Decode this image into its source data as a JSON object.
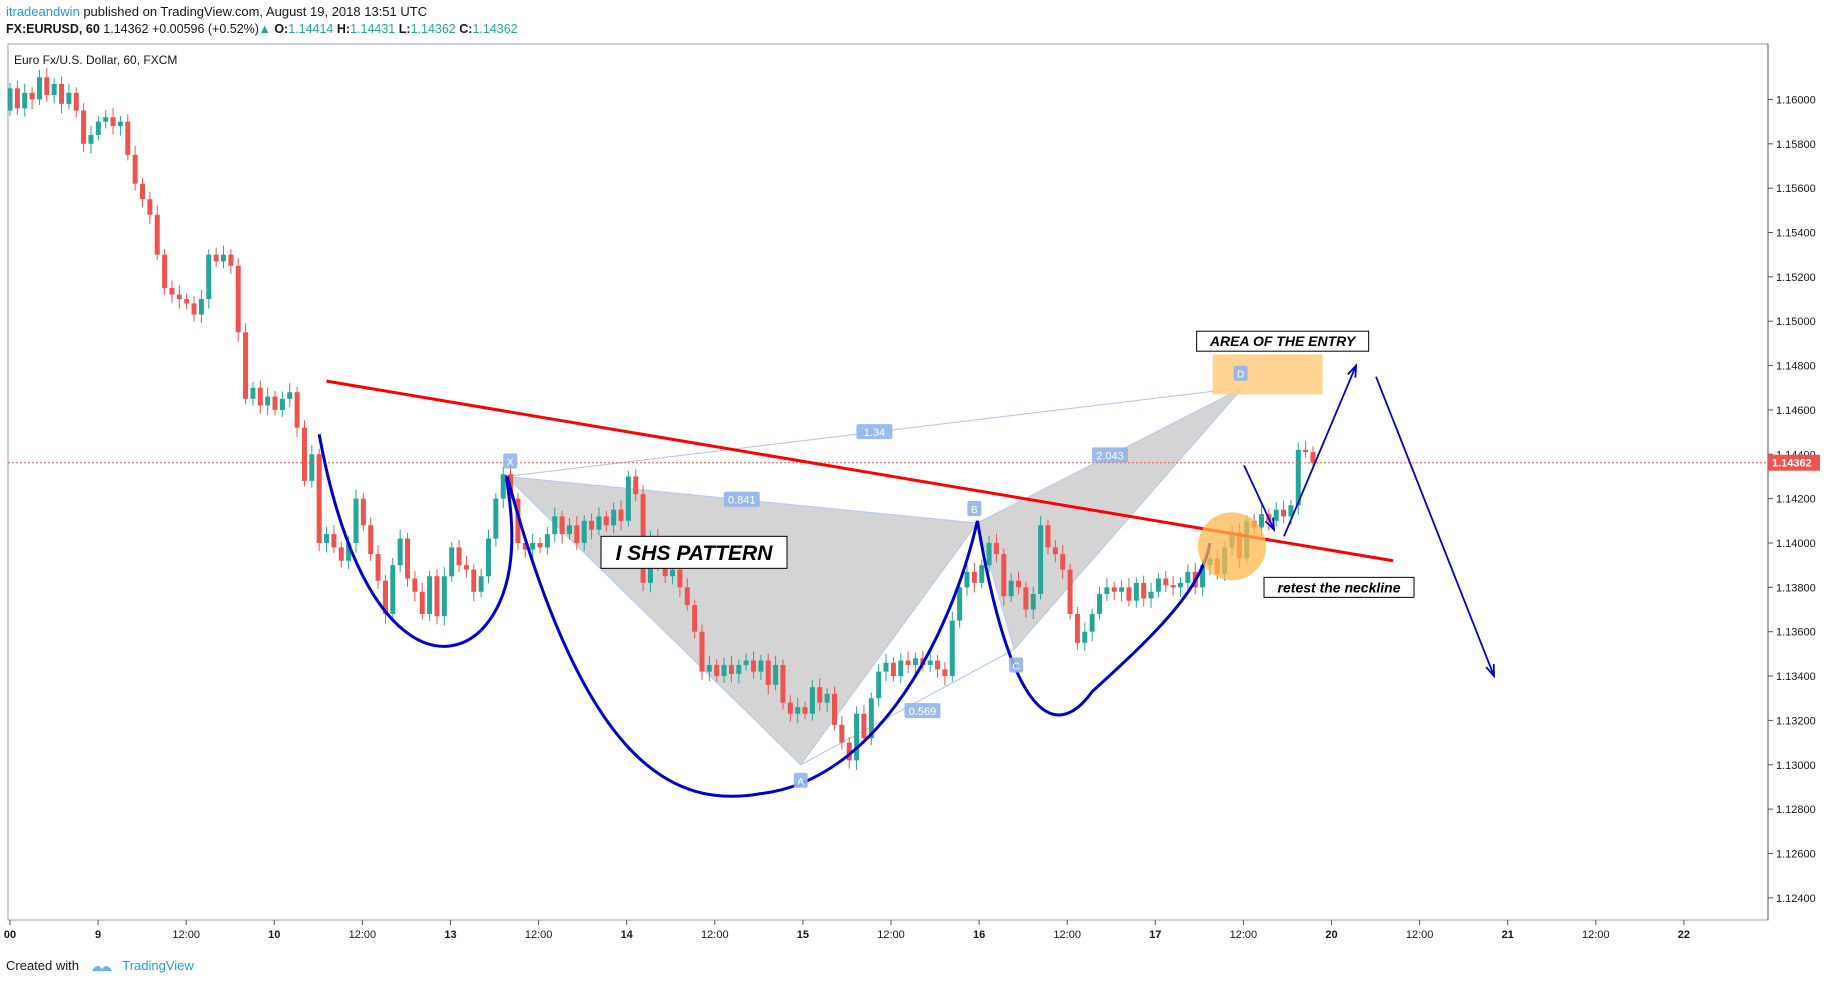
{
  "header": {
    "author": "itradeandwin",
    "published_text": " published on TradingView.com, August 19, 2018 13:51 UTC",
    "symbol": "FX:EURUSD, 60",
    "last": "1.14362",
    "change_arrow": "▲",
    "change": "+0.00596 (+0.52%)",
    "o_label": "O:",
    "o_value": "1.14414",
    "h_label": "H:",
    "h_value": "1.14431",
    "l_label": "L:",
    "l_value": "1.14362",
    "c_label": "C:",
    "c_value": "1.14362"
  },
  "footer": {
    "created_with": "Created with",
    "brand": "TradingView"
  },
  "colors": {
    "up": "#26a69a",
    "down": "#ef5350",
    "neckline": "#ff0000",
    "pattern": "#0000cc",
    "harmonic_fill": "#d0d0d0",
    "harmonic_line": "#a9c3ee",
    "entry": "#ffcc80",
    "price_line": "#ef5350"
  },
  "chart_data": {
    "type": "candlestick",
    "symbol_title": "Euro Fx/U.S. Dollar, 60, FXCM",
    "ylim": [
      1.123,
      1.1625
    ],
    "y_ticks": [
      "1.16000",
      "1.15800",
      "1.15600",
      "1.15400",
      "1.15200",
      "1.15000",
      "1.14800",
      "1.14600",
      "1.14400",
      "1.14200",
      "1.14000",
      "1.13800",
      "1.13600",
      "1.13400",
      "1.13200",
      "1.13000",
      "1.12800",
      "1.12600",
      "1.12400"
    ],
    "x_ticks": [
      "00",
      "9",
      "12:00",
      "10",
      "12:00",
      "13",
      "12:00",
      "14",
      "12:00",
      "15",
      "12:00",
      "16",
      "12:00",
      "17",
      "12:00",
      "20",
      "12:00",
      "21",
      "12:00",
      "22"
    ],
    "last_price_label": "1.14362",
    "candles": [
      [
        1.1595,
        1.1605
      ],
      [
        1.1605,
        1.1596
      ],
      [
        1.1596,
        1.1603
      ],
      [
        1.1603,
        1.16
      ],
      [
        1.16,
        1.161
      ],
      [
        1.161,
        1.1602
      ],
      [
        1.1602,
        1.1607
      ],
      [
        1.1607,
        1.1598
      ],
      [
        1.1598,
        1.1603
      ],
      [
        1.1603,
        1.1595
      ],
      [
        1.1595,
        1.158
      ],
      [
        1.158,
        1.1584
      ],
      [
        1.1584,
        1.159
      ],
      [
        1.159,
        1.1592
      ],
      [
        1.1592,
        1.1588
      ],
      [
        1.1588,
        1.159
      ],
      [
        1.159,
        1.1575
      ],
      [
        1.1575,
        1.1562
      ],
      [
        1.1562,
        1.1555
      ],
      [
        1.1555,
        1.1548
      ],
      [
        1.1548,
        1.153
      ],
      [
        1.153,
        1.1515
      ],
      [
        1.1515,
        1.1512
      ],
      [
        1.1512,
        1.151
      ],
      [
        1.151,
        1.1508
      ],
      [
        1.1508,
        1.1503
      ],
      [
        1.1503,
        1.151
      ],
      [
        1.151,
        1.153
      ],
      [
        1.153,
        1.1527
      ],
      [
        1.1527,
        1.153
      ],
      [
        1.153,
        1.1525
      ],
      [
        1.1525,
        1.1495
      ],
      [
        1.1495,
        1.1465
      ],
      [
        1.1465,
        1.147
      ],
      [
        1.147,
        1.1462
      ],
      [
        1.1462,
        1.1466
      ],
      [
        1.1466,
        1.146
      ],
      [
        1.146,
        1.1465
      ],
      [
        1.1465,
        1.1468
      ],
      [
        1.1468,
        1.1452
      ],
      [
        1.1452,
        1.1428
      ],
      [
        1.1428,
        1.144
      ],
      [
        1.144,
        1.14
      ],
      [
        1.14,
        1.1404
      ],
      [
        1.1404,
        1.1398
      ],
      [
        1.1398,
        1.1392
      ],
      [
        1.1392,
        1.14
      ],
      [
        1.14,
        1.142
      ],
      [
        1.142,
        1.1408
      ],
      [
        1.1408,
        1.1395
      ],
      [
        1.1395,
        1.1383
      ],
      [
        1.1383,
        1.1368
      ],
      [
        1.1368,
        1.139
      ],
      [
        1.139,
        1.1402
      ],
      [
        1.1402,
        1.1384
      ],
      [
        1.1384,
        1.1378
      ],
      [
        1.1378,
        1.1368
      ],
      [
        1.1368,
        1.1385
      ],
      [
        1.1385,
        1.1367
      ],
      [
        1.1367,
        1.1385
      ],
      [
        1.1385,
        1.1398
      ],
      [
        1.1398,
        1.139
      ],
      [
        1.139,
        1.1388
      ],
      [
        1.1388,
        1.1378
      ],
      [
        1.1378,
        1.1385
      ],
      [
        1.1385,
        1.1402
      ],
      [
        1.1402,
        1.142
      ],
      [
        1.142,
        1.1431
      ],
      [
        1.1431,
        1.142
      ],
      [
        1.142,
        1.14
      ],
      [
        1.14,
        1.1397
      ],
      [
        1.1397,
        1.14
      ],
      [
        1.14,
        1.1398
      ],
      [
        1.1398,
        1.1404
      ],
      [
        1.1404,
        1.1412
      ],
      [
        1.1412,
        1.1404
      ],
      [
        1.1404,
        1.1408
      ],
      [
        1.1408,
        1.14
      ],
      [
        1.14,
        1.141
      ],
      [
        1.141,
        1.1406
      ],
      [
        1.1406,
        1.1412
      ],
      [
        1.1412,
        1.1408
      ],
      [
        1.1408,
        1.1415
      ],
      [
        1.1415,
        1.141
      ],
      [
        1.141,
        1.143
      ],
      [
        1.143,
        1.1422
      ],
      [
        1.1422,
        1.1382
      ],
      [
        1.1382,
        1.1403
      ],
      [
        1.1403,
        1.139
      ],
      [
        1.139,
        1.1385
      ],
      [
        1.1385,
        1.1388
      ],
      [
        1.1388,
        1.138
      ],
      [
        1.138,
        1.1372
      ],
      [
        1.1372,
        1.136
      ],
      [
        1.136,
        1.1342
      ],
      [
        1.1342,
        1.1345
      ],
      [
        1.1345,
        1.134
      ],
      [
        1.134,
        1.1345
      ],
      [
        1.1345,
        1.1341
      ],
      [
        1.1341,
        1.1345
      ],
      [
        1.1345,
        1.1347
      ],
      [
        1.1347,
        1.1342
      ],
      [
        1.1342,
        1.1347
      ],
      [
        1.1347,
        1.1336
      ],
      [
        1.1336,
        1.1345
      ],
      [
        1.1345,
        1.1328
      ],
      [
        1.1328,
        1.1323
      ],
      [
        1.1323,
        1.1326
      ],
      [
        1.1326,
        1.1323
      ],
      [
        1.1323,
        1.1335
      ],
      [
        1.1335,
        1.1328
      ],
      [
        1.1328,
        1.1332
      ],
      [
        1.1332,
        1.1318
      ],
      [
        1.1318,
        1.131
      ],
      [
        1.131,
        1.1302
      ],
      [
        1.1302,
        1.1323
      ],
      [
        1.1323,
        1.1312
      ],
      [
        1.1312,
        1.133
      ],
      [
        1.133,
        1.1342
      ],
      [
        1.1342,
        1.1346
      ],
      [
        1.1346,
        1.134
      ],
      [
        1.134,
        1.1347
      ],
      [
        1.1347,
        1.1345
      ],
      [
        1.1345,
        1.1348
      ],
      [
        1.1348,
        1.1345
      ],
      [
        1.1345,
        1.1347
      ],
      [
        1.1347,
        1.1343
      ],
      [
        1.1343,
        1.134
      ],
      [
        1.134,
        1.1365
      ],
      [
        1.1365,
        1.138
      ],
      [
        1.138,
        1.1387
      ],
      [
        1.1387,
        1.1382
      ],
      [
        1.1382,
        1.139
      ],
      [
        1.139,
        1.14
      ],
      [
        1.14,
        1.1395
      ],
      [
        1.1395,
        1.1376
      ],
      [
        1.1376,
        1.1383
      ],
      [
        1.1383,
        1.138
      ],
      [
        1.138,
        1.137
      ],
      [
        1.137,
        1.1377
      ],
      [
        1.1377,
        1.1408
      ],
      [
        1.1408,
        1.1398
      ],
      [
        1.1398,
        1.1395
      ],
      [
        1.1395,
        1.1388
      ],
      [
        1.1388,
        1.1368
      ],
      [
        1.1368,
        1.1355
      ],
      [
        1.1355,
        1.136
      ],
      [
        1.136,
        1.1368
      ],
      [
        1.1368,
        1.1377
      ],
      [
        1.1377,
        1.138
      ],
      [
        1.138,
        1.1378
      ],
      [
        1.1378,
        1.138
      ],
      [
        1.138,
        1.1374
      ],
      [
        1.1374,
        1.1382
      ],
      [
        1.1382,
        1.1375
      ],
      [
        1.1375,
        1.1378
      ],
      [
        1.1378,
        1.1384
      ],
      [
        1.1384,
        1.1381
      ],
      [
        1.1381,
        1.138
      ],
      [
        1.138,
        1.1382
      ],
      [
        1.1382,
        1.1387
      ],
      [
        1.1387,
        1.138
      ],
      [
        1.138,
        1.139
      ],
      [
        1.139,
        1.1393
      ],
      [
        1.1393,
        1.1386
      ],
      [
        1.1386,
        1.1398
      ],
      [
        1.1398,
        1.1405
      ],
      [
        1.1405,
        1.1393
      ],
      [
        1.1393,
        1.141
      ],
      [
        1.141,
        1.1407
      ],
      [
        1.1407,
        1.1413
      ],
      [
        1.1413,
        1.141
      ],
      [
        1.141,
        1.1415
      ],
      [
        1.1415,
        1.1412
      ],
      [
        1.1412,
        1.1417
      ],
      [
        1.1417,
        1.1442
      ],
      [
        1.1442,
        1.1441
      ],
      [
        1.1441,
        1.14362
      ]
    ],
    "annotations": {
      "pattern_label": "I SHS PATTERN",
      "entry_label": "AREA OF THE ENTRY",
      "retest_label": "retest the neckline",
      "harmonic_points": [
        "X",
        "A",
        "B",
        "C",
        "D"
      ],
      "ratios": [
        "1.34",
        "0.841",
        "2.043",
        "0.569"
      ]
    }
  }
}
